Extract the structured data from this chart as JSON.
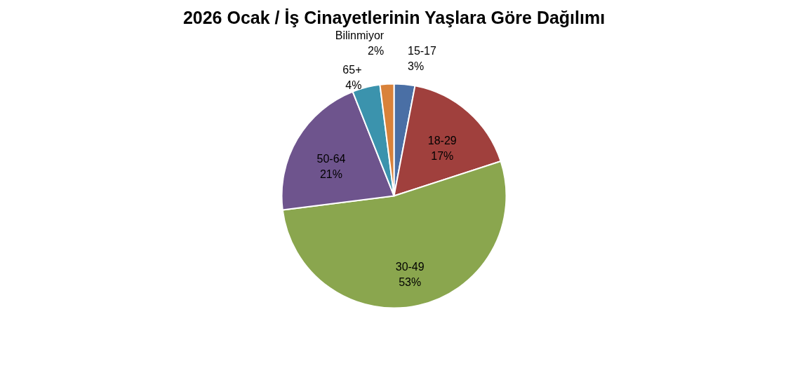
{
  "chart_data": {
    "type": "pie",
    "title": "2026 Ocak / İş Cinayetlerinin Yaşlara Göre Dağılımı",
    "categories": [
      "15-17",
      "18-29",
      "30-49",
      "50-64",
      "65+",
      "Bilinmiyor"
    ],
    "values": [
      3,
      17,
      53,
      21,
      4,
      2
    ],
    "value_labels": [
      "3%",
      "17%",
      "53%",
      "21%",
      "4%",
      "2%"
    ],
    "colors": [
      "#4a6fa5",
      "#a0403d",
      "#8aa64e",
      "#6e548d",
      "#3b93ad",
      "#d9823a"
    ],
    "legend": false
  }
}
